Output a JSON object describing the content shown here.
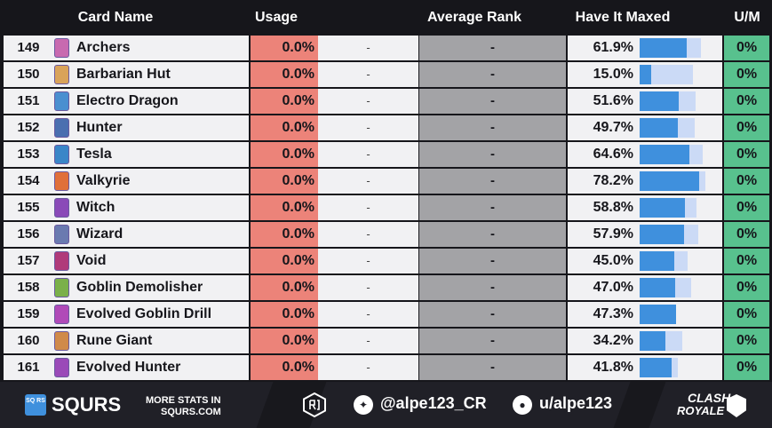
{
  "headers": {
    "card_name": "Card Name",
    "usage": "Usage",
    "average_rank": "Average Rank",
    "have_it_maxed": "Have It Maxed",
    "um": "U/M"
  },
  "rows": [
    {
      "rank": "149",
      "name": "Archers",
      "usage": "0.0%",
      "trend": "-",
      "avg_rank": "-",
      "maxed": "61.9%",
      "maxed_pct": 61.9,
      "track_pct": 80,
      "um": "0%",
      "icon_color": "#c86ab0"
    },
    {
      "rank": "150",
      "name": "Barbarian Hut",
      "usage": "0.0%",
      "trend": "-",
      "avg_rank": "-",
      "maxed": "15.0%",
      "maxed_pct": 15.0,
      "track_pct": 70,
      "um": "0%",
      "icon_color": "#d9a35a"
    },
    {
      "rank": "151",
      "name": "Electro Dragon",
      "usage": "0.0%",
      "trend": "-",
      "avg_rank": "-",
      "maxed": "51.6%",
      "maxed_pct": 51.6,
      "track_pct": 73,
      "um": "0%",
      "icon_color": "#4a8fd0"
    },
    {
      "rank": "152",
      "name": "Hunter",
      "usage": "0.0%",
      "trend": "-",
      "avg_rank": "-",
      "maxed": "49.7%",
      "maxed_pct": 49.7,
      "track_pct": 72,
      "um": "0%",
      "icon_color": "#4a6fb0"
    },
    {
      "rank": "153",
      "name": "Tesla",
      "usage": "0.0%",
      "trend": "-",
      "avg_rank": "-",
      "maxed": "64.6%",
      "maxed_pct": 64.6,
      "track_pct": 82,
      "um": "0%",
      "icon_color": "#3a86c8"
    },
    {
      "rank": "154",
      "name": "Valkyrie",
      "usage": "0.0%",
      "trend": "-",
      "avg_rank": "-",
      "maxed": "78.2%",
      "maxed_pct": 78.2,
      "track_pct": 86,
      "um": "0%",
      "icon_color": "#e0703a"
    },
    {
      "rank": "155",
      "name": "Witch",
      "usage": "0.0%",
      "trend": "-",
      "avg_rank": "-",
      "maxed": "58.8%",
      "maxed_pct": 58.8,
      "track_pct": 74,
      "um": "0%",
      "icon_color": "#8a4ab8"
    },
    {
      "rank": "156",
      "name": "Wizard",
      "usage": "0.0%",
      "trend": "-",
      "avg_rank": "-",
      "maxed": "57.9%",
      "maxed_pct": 57.9,
      "track_pct": 77,
      "um": "0%",
      "icon_color": "#6a7ab0"
    },
    {
      "rank": "157",
      "name": "Void",
      "usage": "0.0%",
      "trend": "-",
      "avg_rank": "-",
      "maxed": "45.0%",
      "maxed_pct": 45.0,
      "track_pct": 63,
      "um": "0%",
      "icon_color": "#b03a7a"
    },
    {
      "rank": "158",
      "name": "Goblin Demolisher",
      "usage": "0.0%",
      "trend": "-",
      "avg_rank": "-",
      "maxed": "47.0%",
      "maxed_pct": 47.0,
      "track_pct": 68,
      "um": "0%",
      "icon_color": "#7ab04a"
    },
    {
      "rank": "159",
      "name": "Evolved Goblin Drill",
      "usage": "0.0%",
      "trend": "-",
      "avg_rank": "-",
      "maxed": "47.3%",
      "maxed_pct": 47.3,
      "track_pct": 47.3,
      "um": "0%",
      "icon_color": "#b04ab8"
    },
    {
      "rank": "160",
      "name": "Rune Giant",
      "usage": "0.0%",
      "trend": "-",
      "avg_rank": "-",
      "maxed": "34.2%",
      "maxed_pct": 34.2,
      "track_pct": 56,
      "um": "0%",
      "icon_color": "#d08a4a"
    },
    {
      "rank": "161",
      "name": "Evolved Hunter",
      "usage": "0.0%",
      "trend": "-",
      "avg_rank": "-",
      "maxed": "41.8%",
      "maxed_pct": 41.8,
      "track_pct": 50,
      "um": "0%",
      "icon_color": "#9a4ab8"
    }
  ],
  "footer": {
    "brand": "SQURS",
    "brand_box": "SQ RS",
    "more_stats_1": "MORE STATS IN",
    "more_stats_2": "SQURS.COM",
    "twitter_handle": "@alpe123_CR",
    "reddit_handle": "u/alpe123",
    "game_logo_1": "CLASH",
    "game_logo_2": "ROYALE"
  },
  "colors": {
    "usage": "#ec8379",
    "avg_rank": "#a3a3a6",
    "bar_fill": "#3f90dd",
    "bar_track": "#cbdaf6",
    "um": "#58c18e"
  }
}
